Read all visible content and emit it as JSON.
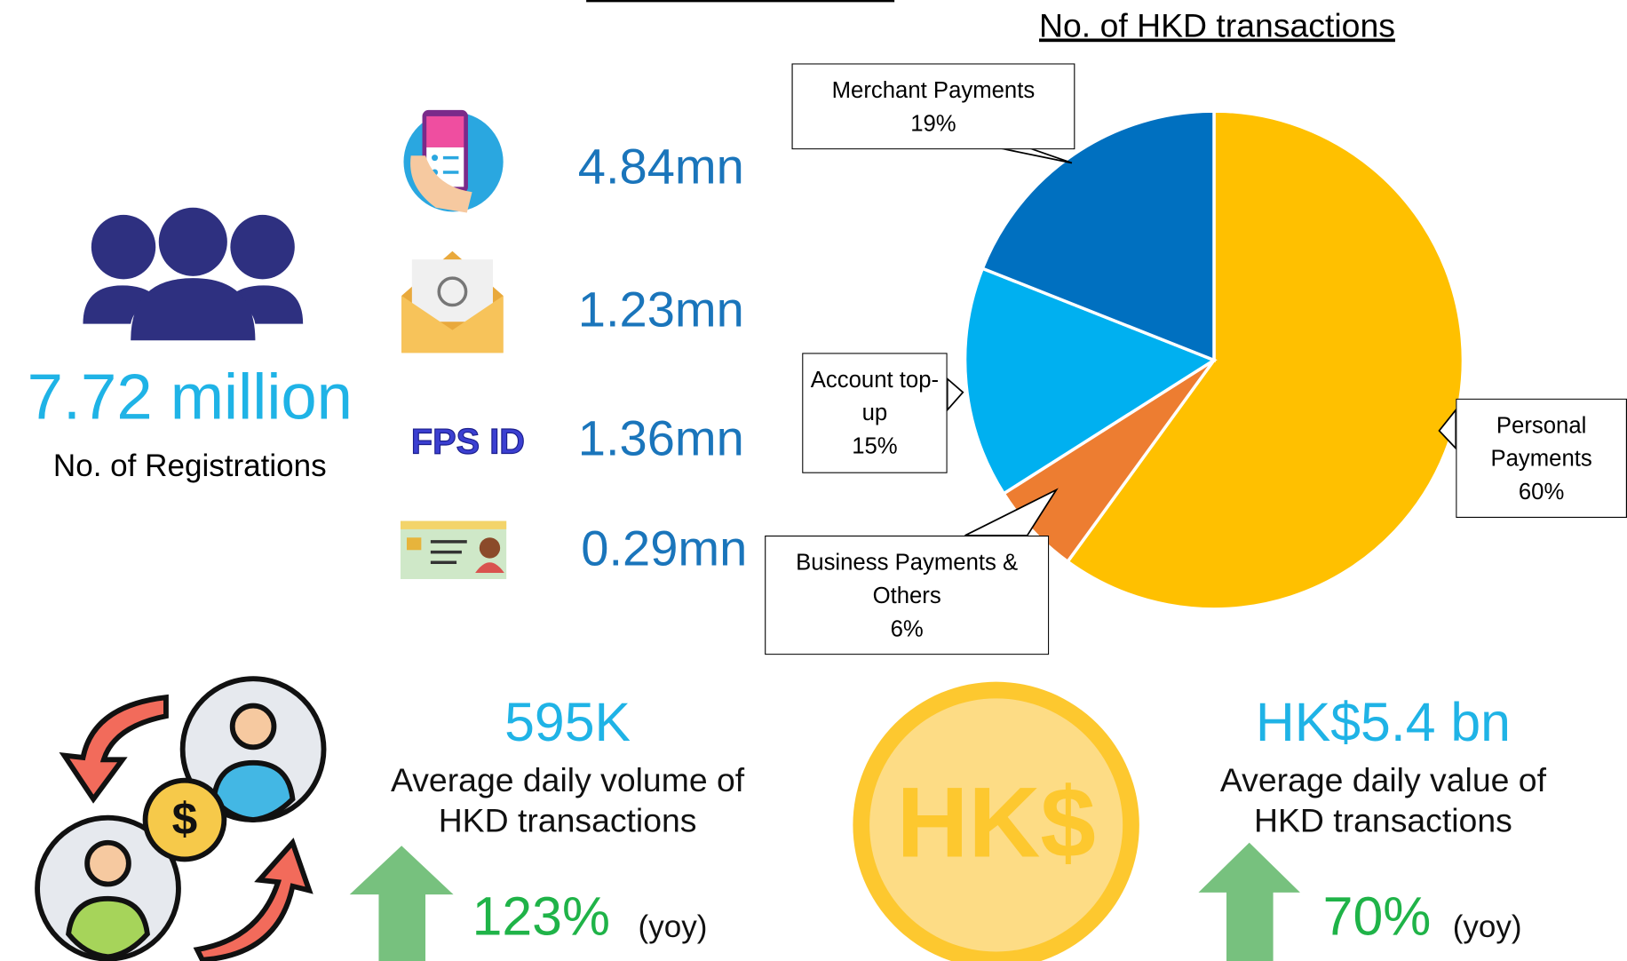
{
  "chart_data": {
    "type": "pie",
    "title": "No. of HKD transactions",
    "categories": [
      "Personal Payments",
      "Business Payments & Others",
      "Account top-up",
      "Merchant Payments"
    ],
    "values": [
      60,
      6,
      15,
      19
    ],
    "value_labels": [
      "60%",
      "6%",
      "15%",
      "19%"
    ],
    "colors": [
      "#FFC000",
      "#ED7D31",
      "#00B0F0",
      "#0070C0"
    ]
  },
  "registrations": {
    "value": "7.72 million",
    "label": "No. of Registrations"
  },
  "channels": {
    "values": [
      "4.84mn",
      "1.23mn",
      "1.36mn",
      "0.29mn"
    ],
    "fps_id_label": "FPS ID"
  },
  "volume": {
    "value": "595K",
    "label_lines": [
      "Average daily volume of",
      "HKD transactions"
    ],
    "growth": "123%",
    "growth_note": "(yoy)"
  },
  "amount": {
    "coin_text": "HK$",
    "value": "HK$5.4 bn",
    "label_lines": [
      "Average daily value of",
      "HKD transactions"
    ],
    "growth": "70%",
    "growth_note": "(yoy)"
  }
}
